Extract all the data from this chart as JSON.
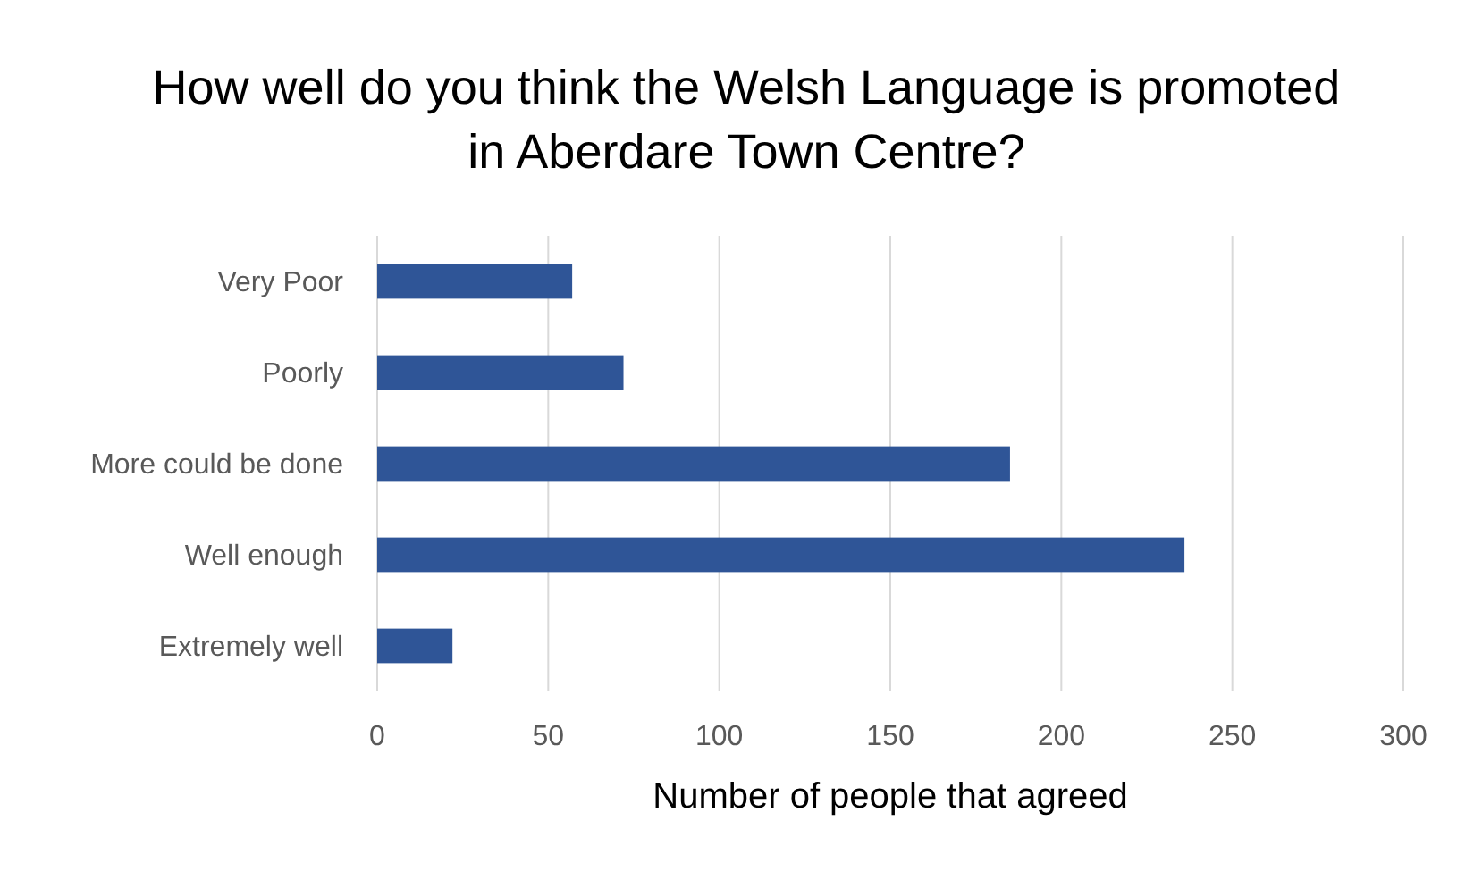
{
  "chart_data": {
    "type": "bar",
    "orientation": "horizontal",
    "title": "How well do you think the Welsh Language is promoted in Aberdare Town Centre?",
    "xlabel": "Number of people that agreed",
    "categories": [
      "Very Poor",
      "Poorly",
      "More could be done",
      "Well enough",
      "Extremely well"
    ],
    "values": [
      57,
      72,
      185,
      236,
      22
    ],
    "color": "#2f5597",
    "xlim": [
      0,
      300
    ],
    "xticks": [
      0,
      50,
      100,
      150,
      200,
      250,
      300
    ],
    "grid": "x"
  }
}
